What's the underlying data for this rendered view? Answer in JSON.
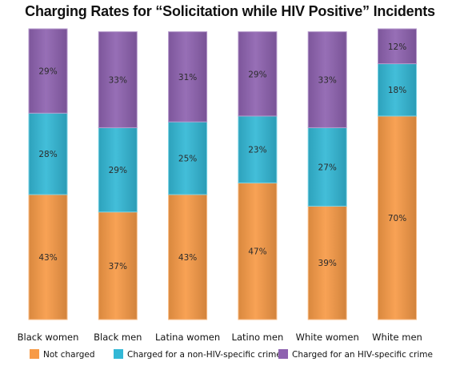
{
  "chart_data": {
    "type": "bar",
    "stacked": true,
    "percent_stacked": true,
    "title": "Charging Rates for “Solicitation while HIV Positive” Incidents",
    "categories": [
      "Black women",
      "Black men",
      "Latina women",
      "Latino men",
      "White women",
      "White men"
    ],
    "series": [
      {
        "name": "Not charged",
        "values": [
          43,
          37,
          43,
          47,
          39,
          70
        ],
        "labels": [
          "43%",
          "37%",
          "43%",
          "47%",
          "39%",
          "70%"
        ],
        "color": "#F79A46"
      },
      {
        "name": "Charged for a non-HIV-specific crime",
        "values": [
          28,
          29,
          25,
          23,
          27,
          18
        ],
        "labels": [
          "28%",
          "29%",
          "25%",
          "23%",
          "27%",
          "18%"
        ],
        "color": "#33B8D6"
      },
      {
        "name": "Charged for an HIV-specific crime",
        "values": [
          29,
          33,
          31,
          29,
          33,
          12
        ],
        "labels": [
          "29%",
          "33%",
          "31%",
          "29%",
          "33%",
          "12%"
        ],
        "color": "#8E62B0"
      }
    ],
    "ylim": [
      0,
      100
    ],
    "legend_position": "bottom",
    "grid": false
  }
}
